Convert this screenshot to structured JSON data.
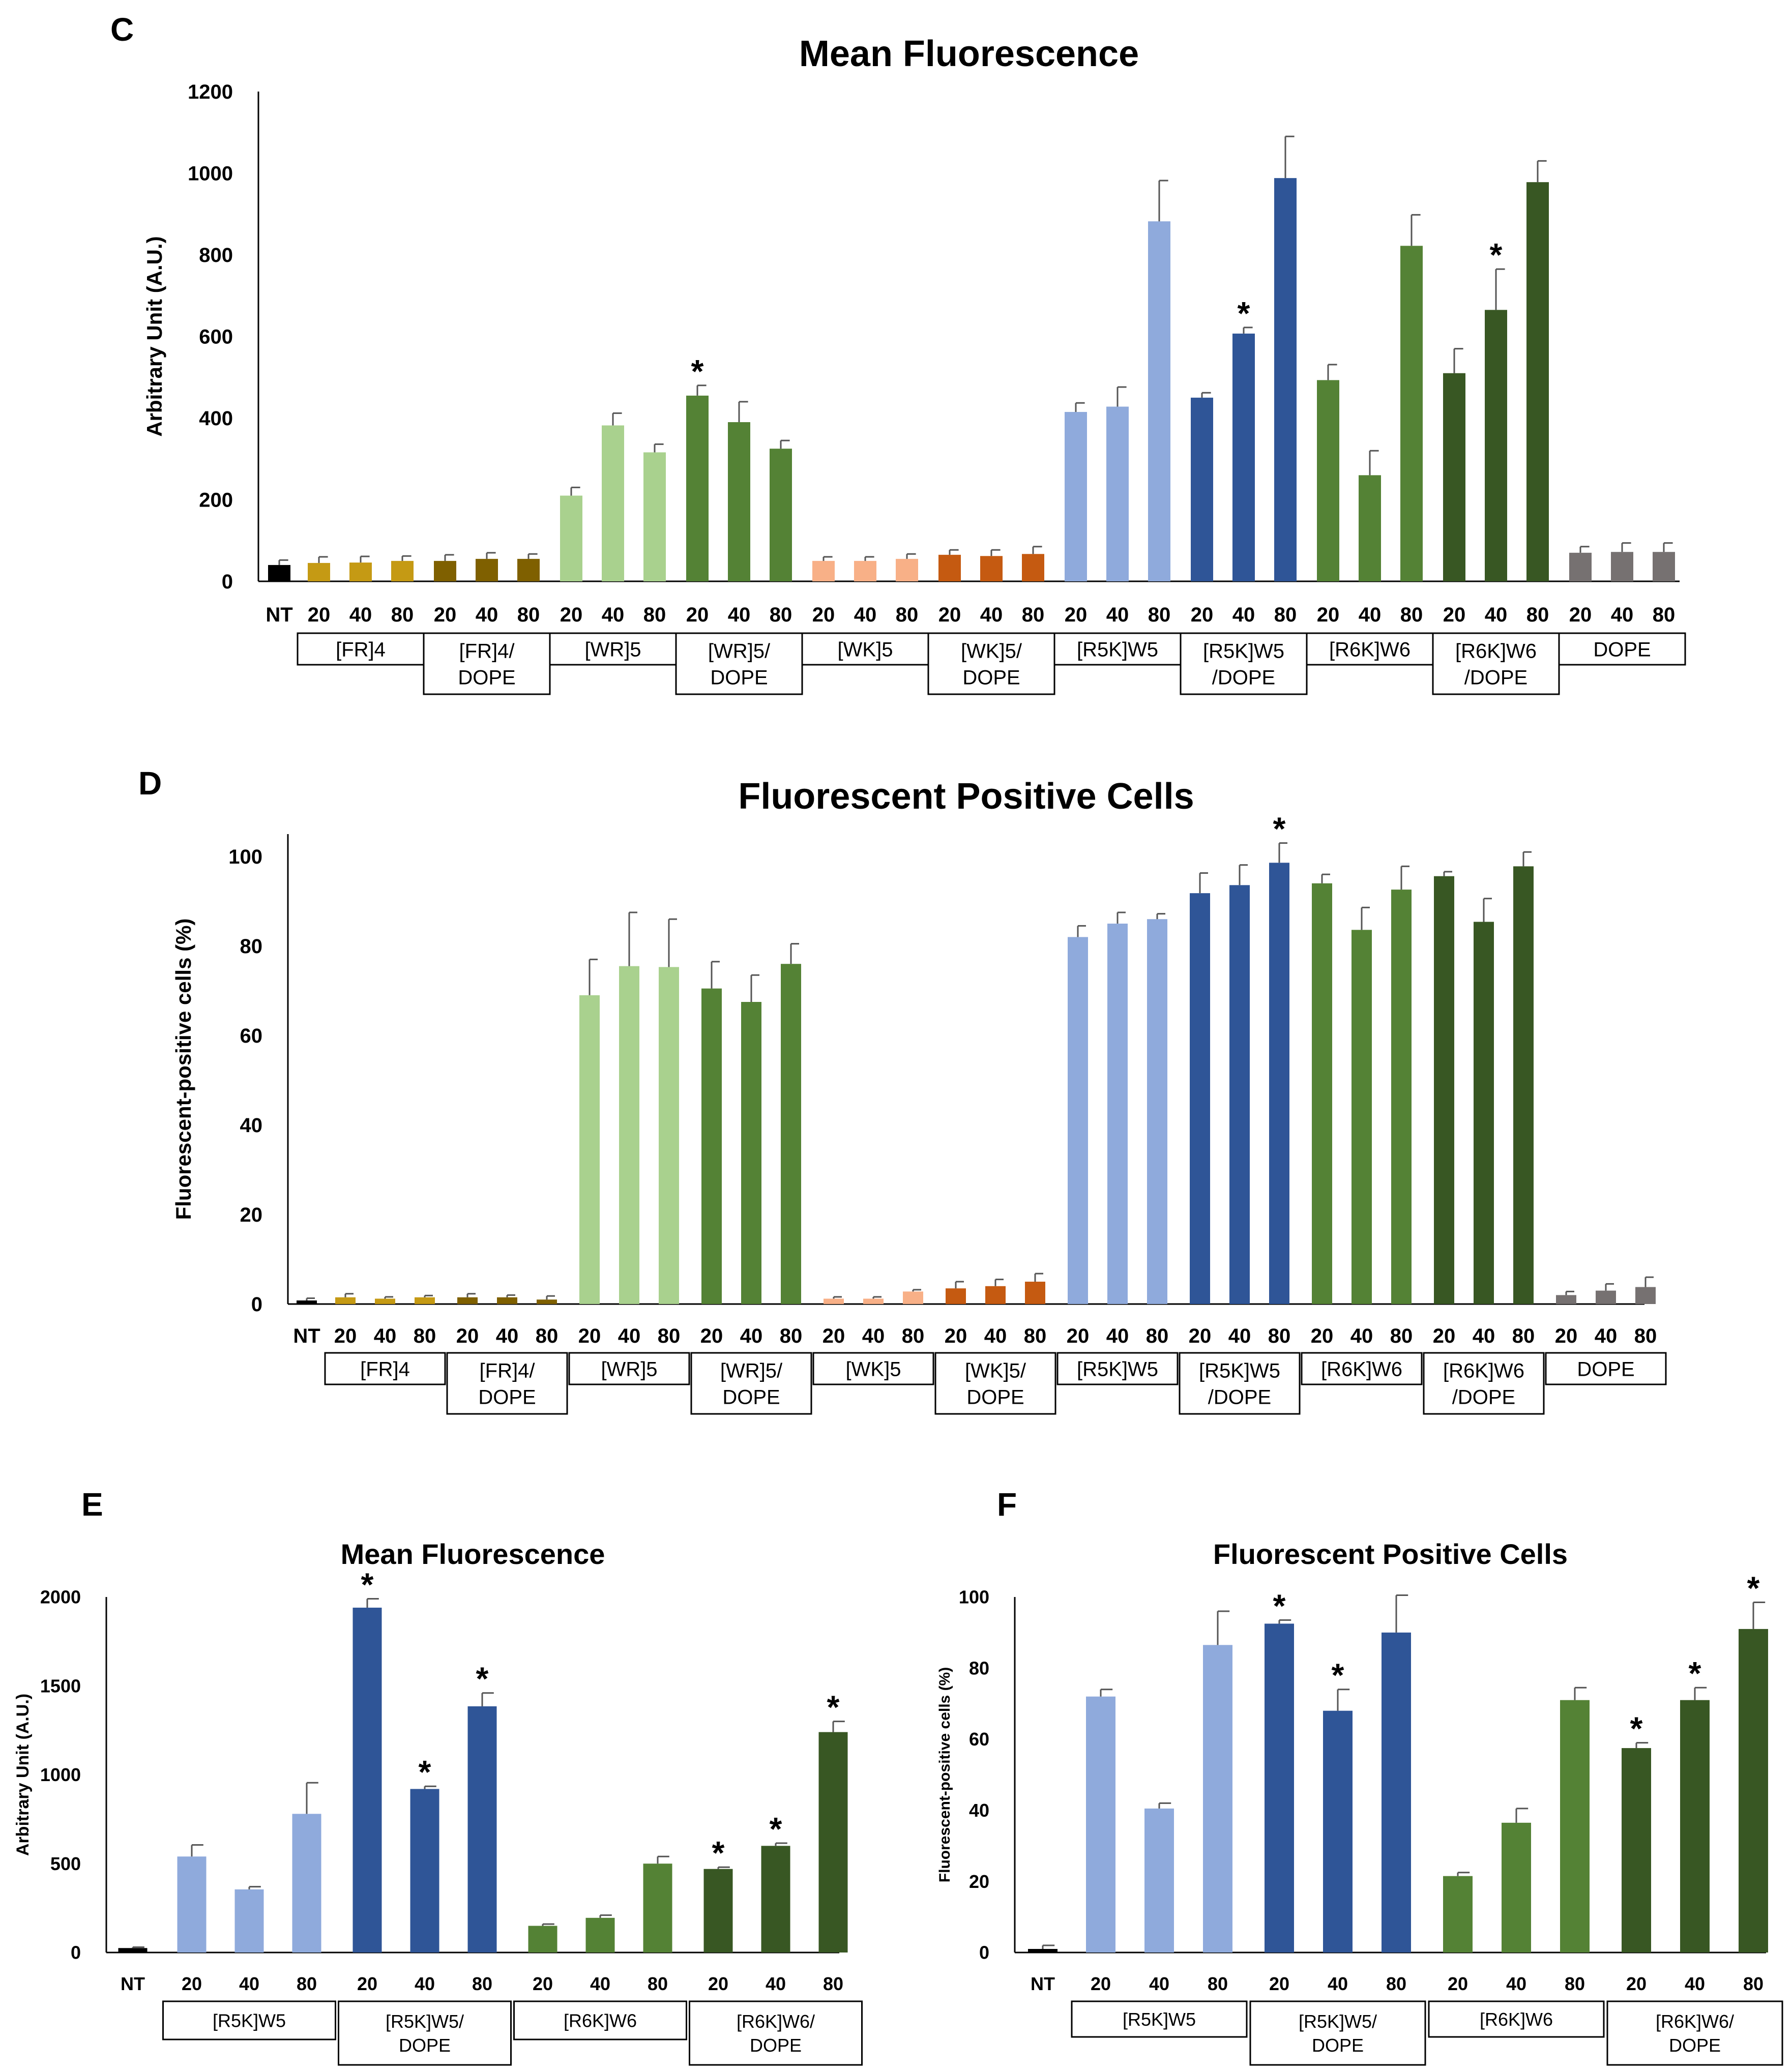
{
  "colors": {
    "NT": "#000000",
    "FR4": "#C59A14",
    "FR4_DOPE": "#7F6000",
    "WR5": "#A9D18E",
    "WR5_DOPE": "#548235",
    "WK5": "#F8B087",
    "WK5_DOPE": "#C55A11",
    "R5KW5": "#8FAADC",
    "R5KW5_DOPE": "#2F5597",
    "R6KW6": "#548235",
    "R6KW6_DOPE": "#385723",
    "DOPE": "#767171"
  },
  "chart_data": [
    {
      "panel": "C",
      "type": "bar",
      "title": "Mean Fluorescence",
      "ylabel": "Arbitrary Unit (A.U.)",
      "xlabel": "",
      "ylim": [
        0,
        1200
      ],
      "yticks": [
        "0",
        "200",
        "400",
        "600",
        "800",
        "1000",
        "1200"
      ],
      "grid": false,
      "groups": [
        {
          "label": "",
          "color": "NT",
          "bars": [
            {
              "x": "NT",
              "value": 40,
              "err": 12,
              "star": false
            }
          ]
        },
        {
          "label": "[FR]4",
          "color": "FR4",
          "bars": [
            {
              "x": "20",
              "value": 45,
              "err": 15,
              "star": false
            },
            {
              "x": "40",
              "value": 46,
              "err": 15,
              "star": false
            },
            {
              "x": "80",
              "value": 50,
              "err": 12,
              "star": false
            }
          ]
        },
        {
          "label": "[FR]4/|DOPE",
          "color": "FR4_DOPE",
          "bars": [
            {
              "x": "20",
              "value": 50,
              "err": 15,
              "star": false
            },
            {
              "x": "40",
              "value": 55,
              "err": 15,
              "star": false
            },
            {
              "x": "80",
              "value": 55,
              "err": 12,
              "star": false
            }
          ]
        },
        {
          "label": "[WR]5",
          "color": "WR5",
          "bars": [
            {
              "x": "20",
              "value": 210,
              "err": 20,
              "star": false
            },
            {
              "x": "40",
              "value": 382,
              "err": 30,
              "star": false
            },
            {
              "x": "80",
              "value": 316,
              "err": 20,
              "star": false
            }
          ]
        },
        {
          "label": "[WR]5/|DOPE",
          "color": "WR5_DOPE",
          "bars": [
            {
              "x": "20",
              "value": 455,
              "err": 25,
              "star": true
            },
            {
              "x": "40",
              "value": 390,
              "err": 50,
              "star": false
            },
            {
              "x": "80",
              "value": 325,
              "err": 20,
              "star": false
            }
          ]
        },
        {
          "label": "[WK]5",
          "color": "WK5",
          "bars": [
            {
              "x": "20",
              "value": 50,
              "err": 10,
              "star": false
            },
            {
              "x": "40",
              "value": 50,
              "err": 10,
              "star": false
            },
            {
              "x": "80",
              "value": 55,
              "err": 12,
              "star": false
            }
          ]
        },
        {
          "label": "[WK]5/|DOPE",
          "color": "WK5_DOPE",
          "bars": [
            {
              "x": "20",
              "value": 65,
              "err": 12,
              "star": false
            },
            {
              "x": "40",
              "value": 62,
              "err": 15,
              "star": false
            },
            {
              "x": "80",
              "value": 67,
              "err": 18,
              "star": false
            }
          ]
        },
        {
          "label": "[R5K]W5",
          "color": "R5KW5",
          "bars": [
            {
              "x": "20",
              "value": 415,
              "err": 22,
              "star": false
            },
            {
              "x": "40",
              "value": 428,
              "err": 48,
              "star": false
            },
            {
              "x": "80",
              "value": 882,
              "err": 100,
              "star": false
            }
          ]
        },
        {
          "label": "[R5K]W5|/DOPE",
          "color": "R5KW5_DOPE",
          "bars": [
            {
              "x": "20",
              "value": 450,
              "err": 12,
              "star": false
            },
            {
              "x": "40",
              "value": 607,
              "err": 15,
              "star": true
            },
            {
              "x": "80",
              "value": 988,
              "err": 102,
              "star": false
            }
          ]
        },
        {
          "label": "[R6K]W6",
          "color": "R6KW6",
          "bars": [
            {
              "x": "20",
              "value": 493,
              "err": 38,
              "star": false
            },
            {
              "x": "40",
              "value": 260,
              "err": 60,
              "star": false
            },
            {
              "x": "80",
              "value": 822,
              "err": 76,
              "star": false
            }
          ]
        },
        {
          "label": "[R6K]W6|/DOPE",
          "color": "R6KW6_DOPE",
          "bars": [
            {
              "x": "20",
              "value": 510,
              "err": 60,
              "star": false
            },
            {
              "x": "40",
              "value": 665,
              "err": 100,
              "star": true
            },
            {
              "x": "80",
              "value": 978,
              "err": 52,
              "star": false
            }
          ]
        },
        {
          "label": "DOPE",
          "color": "DOPE",
          "bars": [
            {
              "x": "20",
              "value": 70,
              "err": 15,
              "star": false
            },
            {
              "x": "40",
              "value": 72,
              "err": 22,
              "star": false
            },
            {
              "x": "80",
              "value": 72,
              "err": 22,
              "star": false
            }
          ]
        }
      ]
    },
    {
      "panel": "D",
      "type": "bar",
      "title": "Fluorescent Positive Cells",
      "ylabel": "Fluorescent-positive cells (%)",
      "xlabel": "",
      "ylim": [
        0,
        105
      ],
      "yticks": [
        "0",
        "20",
        "40",
        "60",
        "80",
        "100"
      ],
      "grid": false,
      "groups": [
        {
          "label": "",
          "color": "NT",
          "bars": [
            {
              "x": "NT",
              "value": 0.8,
              "err": 0.5,
              "star": false
            }
          ]
        },
        {
          "label": "[FR]4",
          "color": "FR4",
          "bars": [
            {
              "x": "20",
              "value": 1.5,
              "err": 0.8,
              "star": false
            },
            {
              "x": "40",
              "value": 1.2,
              "err": 0.4,
              "star": false
            },
            {
              "x": "80",
              "value": 1.5,
              "err": 0.4,
              "star": false
            }
          ]
        },
        {
          "label": "[FR]4/|DOPE",
          "color": "FR4_DOPE",
          "bars": [
            {
              "x": "20",
              "value": 1.5,
              "err": 0.8,
              "star": false
            },
            {
              "x": "40",
              "value": 1.5,
              "err": 0.5,
              "star": false
            },
            {
              "x": "80",
              "value": 1.0,
              "err": 0.8,
              "star": false
            }
          ]
        },
        {
          "label": "[WR]5",
          "color": "WR5",
          "bars": [
            {
              "x": "20",
              "value": 69,
              "err": 8,
              "star": false
            },
            {
              "x": "40",
              "value": 75.5,
              "err": 12,
              "star": false
            },
            {
              "x": "80",
              "value": 75.3,
              "err": 10.7,
              "star": false
            }
          ]
        },
        {
          "label": "[WR]5/|DOPE",
          "color": "WR5_DOPE",
          "bars": [
            {
              "x": "20",
              "value": 70.5,
              "err": 6,
              "star": false
            },
            {
              "x": "40",
              "value": 67.5,
              "err": 6,
              "star": false
            },
            {
              "x": "80",
              "value": 76,
              "err": 4.5,
              "star": false
            }
          ]
        },
        {
          "label": "[WK]5",
          "color": "WK5",
          "bars": [
            {
              "x": "20",
              "value": 1.2,
              "err": 0.4,
              "star": false
            },
            {
              "x": "40",
              "value": 1.2,
              "err": 0.4,
              "star": false
            },
            {
              "x": "80",
              "value": 2.8,
              "err": 0.4,
              "star": false
            }
          ]
        },
        {
          "label": "[WK]5/|DOPE",
          "color": "WK5_DOPE",
          "bars": [
            {
              "x": "20",
              "value": 3.5,
              "err": 1.5,
              "star": false
            },
            {
              "x": "40",
              "value": 4.0,
              "err": 1.5,
              "star": false
            },
            {
              "x": "80",
              "value": 5.0,
              "err": 1.8,
              "star": false
            }
          ]
        },
        {
          "label": "[R5K]W5",
          "color": "R5KW5",
          "bars": [
            {
              "x": "20",
              "value": 82,
              "err": 2.5,
              "star": false
            },
            {
              "x": "40",
              "value": 85,
              "err": 2.5,
              "star": false
            },
            {
              "x": "80",
              "value": 86,
              "err": 1.2,
              "star": false
            }
          ]
        },
        {
          "label": "[R5K]W5|/DOPE",
          "color": "R5KW5_DOPE",
          "bars": [
            {
              "x": "20",
              "value": 91.8,
              "err": 4.5,
              "star": false
            },
            {
              "x": "40",
              "value": 93.6,
              "err": 4.5,
              "star": false
            },
            {
              "x": "80",
              "value": 98.6,
              "err": 4.4,
              "star": true
            }
          ]
        },
        {
          "label": "[R6K]W6",
          "color": "R6KW6",
          "bars": [
            {
              "x": "20",
              "value": 94,
              "err": 2,
              "star": false
            },
            {
              "x": "40",
              "value": 83.6,
              "err": 5,
              "star": false
            },
            {
              "x": "80",
              "value": 92.6,
              "err": 5.2,
              "star": false
            }
          ]
        },
        {
          "label": "[R6K]W6|/DOPE",
          "color": "R6KW6_DOPE",
          "bars": [
            {
              "x": "20",
              "value": 95.6,
              "err": 1,
              "star": false
            },
            {
              "x": "40",
              "value": 85.4,
              "err": 5.2,
              "star": false
            },
            {
              "x": "80",
              "value": 97.8,
              "err": 3.2,
              "star": false
            }
          ]
        },
        {
          "label": "DOPE",
          "color": "DOPE",
          "bars": [
            {
              "x": "20",
              "value": 2.0,
              "err": 0.8,
              "star": false
            },
            {
              "x": "40",
              "value": 3.0,
              "err": 1.5,
              "star": false
            },
            {
              "x": "80",
              "value": 3.8,
              "err": 2.2,
              "star": false
            }
          ]
        }
      ]
    },
    {
      "panel": "E",
      "type": "bar",
      "title": "Mean Fluorescence",
      "ylabel": "Arbitrary Unit (A.U.)",
      "xlabel": "",
      "ylim": [
        0,
        2000
      ],
      "yticks": [
        "0",
        "500",
        "1000",
        "1500",
        "2000"
      ],
      "grid": false,
      "groups": [
        {
          "label": "",
          "color": "NT",
          "bars": [
            {
              "x": "NT",
              "value": 25,
              "err": 5,
              "star": false
            }
          ]
        },
        {
          "label": "[R5K]W5",
          "color": "R5KW5",
          "bars": [
            {
              "x": "20",
              "value": 540,
              "err": 65,
              "star": false
            },
            {
              "x": "40",
              "value": 355,
              "err": 15,
              "star": false
            },
            {
              "x": "80",
              "value": 780,
              "err": 175,
              "star": false
            }
          ]
        },
        {
          "label": "[R5K]W5/|DOPE",
          "color": "R5KW5_DOPE",
          "bars": [
            {
              "x": "20",
              "value": 1940,
              "err": 50,
              "star": true
            },
            {
              "x": "40",
              "value": 920,
              "err": 15,
              "star": true
            },
            {
              "x": "80",
              "value": 1385,
              "err": 75,
              "star": true
            }
          ]
        },
        {
          "label": "[R6K]W6",
          "color": "R6KW6",
          "bars": [
            {
              "x": "20",
              "value": 150,
              "err": 10,
              "star": false
            },
            {
              "x": "40",
              "value": 195,
              "err": 15,
              "star": false
            },
            {
              "x": "80",
              "value": 500,
              "err": 40,
              "star": false
            }
          ]
        },
        {
          "label": "[R6K]W6/|DOPE",
          "color": "R6KW6_DOPE",
          "bars": [
            {
              "x": "20",
              "value": 470,
              "err": 10,
              "star": true
            },
            {
              "x": "40",
              "value": 600,
              "err": 15,
              "star": true
            },
            {
              "x": "80",
              "value": 1240,
              "err": 60,
              "star": true
            }
          ]
        }
      ]
    },
    {
      "panel": "F",
      "type": "bar",
      "title": "Fluorescent Positive Cells",
      "ylabel": "Fluorescent-positive cells (%)",
      "xlabel": "",
      "ylim": [
        0,
        100
      ],
      "yticks": [
        "0",
        "20",
        "40",
        "60",
        "80",
        "100"
      ],
      "grid": false,
      "groups": [
        {
          "label": "",
          "color": "NT",
          "bars": [
            {
              "x": "NT",
              "value": 1,
              "err": 1,
              "star": false
            }
          ]
        },
        {
          "label": "[R5K]W5",
          "color": "R5KW5",
          "bars": [
            {
              "x": "20",
              "value": 72,
              "err": 2,
              "star": false
            },
            {
              "x": "40",
              "value": 40.5,
              "err": 1.5,
              "star": false
            },
            {
              "x": "80",
              "value": 86.5,
              "err": 9.5,
              "star": false
            }
          ]
        },
        {
          "label": "[R5K]W5/|DOPE",
          "color": "R5KW5_DOPE",
          "bars": [
            {
              "x": "20",
              "value": 92.5,
              "err": 1,
              "star": true
            },
            {
              "x": "40",
              "value": 68,
              "err": 6,
              "star": true
            },
            {
              "x": "80",
              "value": 90,
              "err": 10.5,
              "star": false
            }
          ]
        },
        {
          "label": "[R6K]W6",
          "color": "R6KW6",
          "bars": [
            {
              "x": "20",
              "value": 21.5,
              "err": 1,
              "star": false
            },
            {
              "x": "40",
              "value": 36.5,
              "err": 4,
              "star": false
            },
            {
              "x": "80",
              "value": 71,
              "err": 3.5,
              "star": false
            }
          ]
        },
        {
          "label": "[R6K]W6/|DOPE",
          "color": "R6KW6_DOPE",
          "bars": [
            {
              "x": "20",
              "value": 57.5,
              "err": 1.5,
              "star": true
            },
            {
              "x": "40",
              "value": 71,
              "err": 3.5,
              "star": true
            },
            {
              "x": "80",
              "value": 91,
              "err": 7.5,
              "star": true
            }
          ]
        }
      ]
    }
  ]
}
